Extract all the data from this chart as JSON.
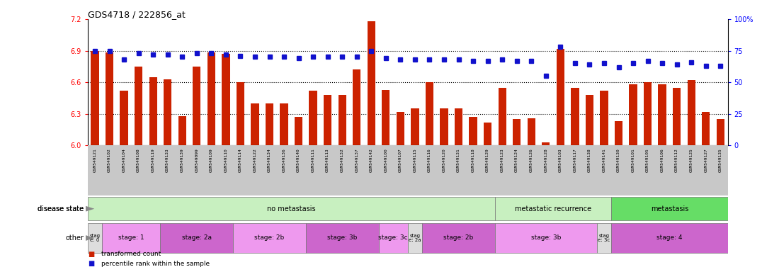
{
  "title": "GDS4718 / 222856_at",
  "samples": [
    "GSM549121",
    "GSM549102",
    "GSM549104",
    "GSM549108",
    "GSM549119",
    "GSM549133",
    "GSM549139",
    "GSM549099",
    "GSM549109",
    "GSM549110",
    "GSM549114",
    "GSM549122",
    "GSM549134",
    "GSM549136",
    "GSM549140",
    "GSM549111",
    "GSM549113",
    "GSM549132",
    "GSM549137",
    "GSM549142",
    "GSM549100",
    "GSM549107",
    "GSM549115",
    "GSM549116",
    "GSM549120",
    "GSM549131",
    "GSM549118",
    "GSM549129",
    "GSM549123",
    "GSM549124",
    "GSM549126",
    "GSM549128",
    "GSM549103",
    "GSM549117",
    "GSM549138",
    "GSM549141",
    "GSM549130",
    "GSM549101",
    "GSM549105",
    "GSM549106",
    "GSM549112",
    "GSM549125",
    "GSM549127",
    "GSM549135"
  ],
  "bar_values": [
    6.9,
    6.88,
    6.52,
    6.75,
    6.65,
    6.63,
    6.28,
    6.75,
    6.88,
    6.87,
    6.6,
    6.4,
    6.4,
    6.4,
    6.27,
    6.52,
    6.48,
    6.48,
    6.72,
    7.18,
    6.53,
    6.32,
    6.35,
    6.6,
    6.35,
    6.35,
    6.27,
    6.22,
    6.55,
    6.25,
    6.26,
    6.03,
    6.92,
    6.55,
    6.48,
    6.52,
    6.23,
    6.58,
    6.6,
    6.58,
    6.55,
    6.62,
    6.32,
    6.25
  ],
  "percentile_values": [
    75,
    75,
    68,
    73,
    72,
    72,
    70,
    73,
    73,
    72,
    71,
    70,
    70,
    70,
    69,
    70,
    70,
    70,
    70,
    75,
    69,
    68,
    68,
    68,
    68,
    68,
    67,
    67,
    68,
    67,
    67,
    55,
    78,
    65,
    64,
    65,
    62,
    65,
    67,
    65,
    64,
    66,
    63,
    63
  ],
  "ylim_left": [
    6.0,
    7.2
  ],
  "ylim_right": [
    0,
    100
  ],
  "bar_color": "#cc2200",
  "dot_color": "#1111cc",
  "bar_bottom": 6.0,
  "yticks_left": [
    6.0,
    6.3,
    6.6,
    6.9,
    7.2
  ],
  "yticks_right": [
    0,
    25,
    50,
    75,
    100
  ],
  "disease_state_bands": [
    {
      "label": "no metastasis",
      "start": 0,
      "end": 28,
      "color": "#c8f0c0"
    },
    {
      "label": "metastatic recurrence",
      "start": 28,
      "end": 36,
      "color": "#c8f0c0"
    },
    {
      "label": "metastasis",
      "start": 36,
      "end": 44,
      "color": "#66dd66"
    }
  ],
  "stage_bands": [
    {
      "label": "stag\ne: 0",
      "start": 0,
      "end": 1,
      "color": "#dddddd"
    },
    {
      "label": "stage: 1",
      "start": 1,
      "end": 5,
      "color": "#ee99ee"
    },
    {
      "label": "stage: 2a",
      "start": 5,
      "end": 10,
      "color": "#cc66cc"
    },
    {
      "label": "stage: 2b",
      "start": 10,
      "end": 15,
      "color": "#ee99ee"
    },
    {
      "label": "stage: 3b",
      "start": 15,
      "end": 20,
      "color": "#cc66cc"
    },
    {
      "label": "stage: 3c",
      "start": 20,
      "end": 22,
      "color": "#ee99ee"
    },
    {
      "label": "stag\ne: 2a",
      "start": 22,
      "end": 23,
      "color": "#dddddd"
    },
    {
      "label": "stage: 2b",
      "start": 23,
      "end": 28,
      "color": "#cc66cc"
    },
    {
      "label": "stage: 3b",
      "start": 28,
      "end": 35,
      "color": "#ee99ee"
    },
    {
      "label": "stag\ne: 3c",
      "start": 35,
      "end": 36,
      "color": "#dddddd"
    },
    {
      "label": "stage: 4",
      "start": 36,
      "end": 44,
      "color": "#cc66cc"
    }
  ],
  "legend_labels": [
    "transformed count",
    "percentile rank within the sample"
  ],
  "legend_colors": [
    "#cc2200",
    "#1111cc"
  ],
  "xlabel_bg_color": "#cccccc",
  "dotted_line_color": "#000000",
  "dotted_lines_at": [
    6.3,
    6.6,
    6.9
  ]
}
